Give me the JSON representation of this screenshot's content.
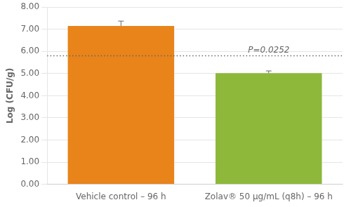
{
  "chart_data": {
    "type": "bar",
    "categories": [
      "Vehicle control – 96 h",
      "Zolav® 50 μg/mL (q8h) – 96 h"
    ],
    "values": [
      7.15,
      5.02
    ],
    "errors": [
      0.22,
      0.1
    ],
    "colors": [
      "#E8841A",
      "#8DB83A"
    ],
    "ylabel": "Log (CFU/g)",
    "ylim": [
      0.0,
      8.0
    ],
    "yticks": [
      {
        "value": 0,
        "label": "0.00"
      },
      {
        "value": 1,
        "label": "1.00"
      },
      {
        "value": 2,
        "label": "2.00"
      },
      {
        "value": 3,
        "label": "3.00"
      },
      {
        "value": 4,
        "label": "4.00"
      },
      {
        "value": 5,
        "label": "5.00"
      },
      {
        "value": 6,
        "label": "6.00"
      },
      {
        "value": 7,
        "label": "7.00"
      },
      {
        "value": 8,
        "label": "8.00"
      }
    ],
    "reference_line": {
      "y": 5.8,
      "line_style": "dotted"
    },
    "annotations": [
      {
        "text": "P=0.0252",
        "x": 1,
        "y": 5.85
      }
    ],
    "grid": true
  }
}
